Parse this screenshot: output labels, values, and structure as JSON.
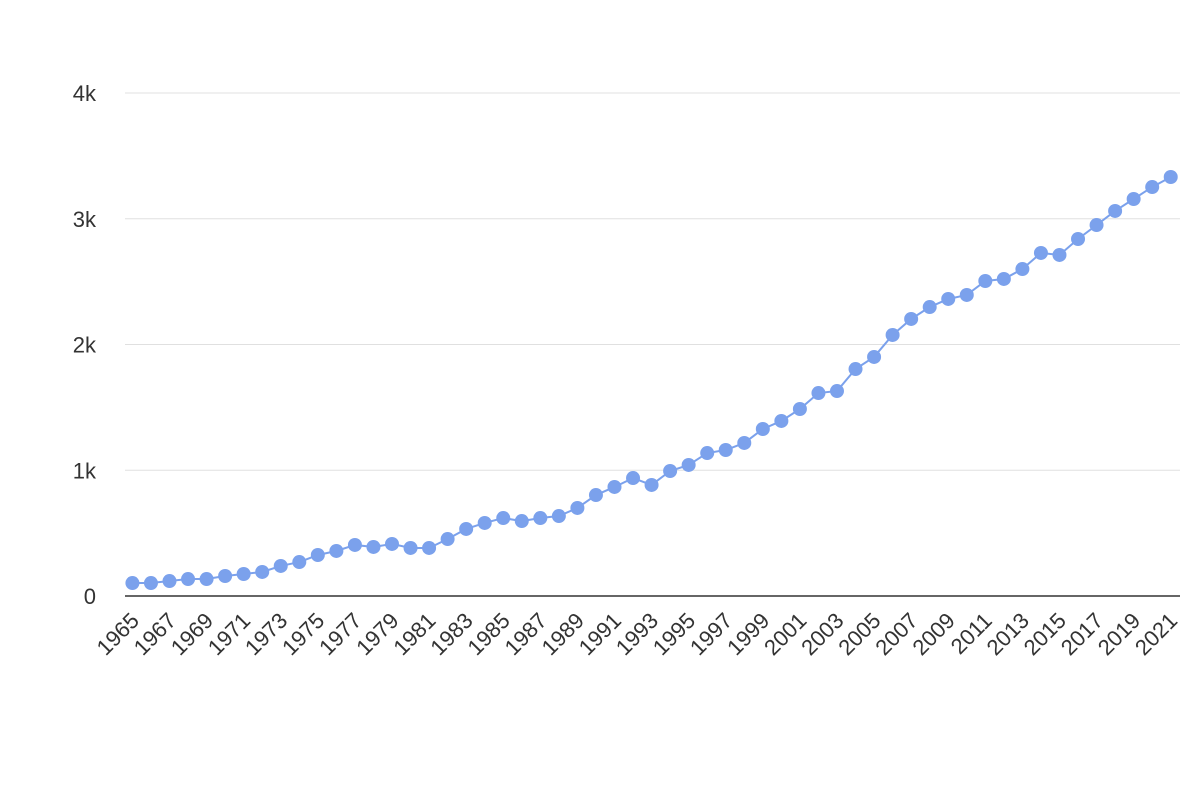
{
  "chart_data": {
    "type": "line",
    "x": [
      1965,
      1966,
      1967,
      1968,
      1969,
      1970,
      1971,
      1972,
      1973,
      1974,
      1975,
      1976,
      1977,
      1978,
      1979,
      1980,
      1981,
      1982,
      1983,
      1984,
      1985,
      1986,
      1987,
      1988,
      1989,
      1990,
      1991,
      1992,
      1993,
      1994,
      1995,
      1996,
      1997,
      1998,
      1999,
      2000,
      2001,
      2002,
      2003,
      2004,
      2005,
      2006,
      2007,
      2008,
      2009,
      2010,
      2011,
      2012,
      2013,
      2014,
      2015,
      2016,
      2017,
      2018,
      2019,
      2020,
      2021
    ],
    "series": [
      {
        "color": "#7ba1ec",
        "values": [
          103,
          103,
          119,
          135,
          135,
          159,
          175,
          191,
          239,
          270,
          326,
          358,
          406,
          390,
          414,
          382,
          382,
          453,
          533,
          581,
          620,
          596,
          620,
          636,
          700,
          803,
          867,
          938,
          883,
          994,
          1042,
          1137,
          1161,
          1217,
          1328,
          1392,
          1487,
          1614,
          1630,
          1805,
          1901,
          2076,
          2203,
          2298,
          2362,
          2394,
          2505,
          2521,
          2600,
          2728,
          2712,
          2839,
          2950,
          3062,
          3157,
          3252,
          3332
        ]
      }
    ],
    "xlim": [
      1964.6,
      2021.5
    ],
    "xticks": [
      1965,
      1967,
      1969,
      1971,
      1973,
      1975,
      1977,
      1979,
      1981,
      1983,
      1985,
      1987,
      1989,
      1991,
      1993,
      1995,
      1997,
      1999,
      2001,
      2003,
      2005,
      2007,
      2009,
      2011,
      2013,
      2015,
      2017,
      2019,
      2021
    ],
    "ylim": [
      0,
      4000
    ],
    "yticks": [
      0,
      {
        "value": 1000,
        "label": "1k"
      },
      {
        "value": 2000,
        "label": "2k"
      },
      {
        "value": 3000,
        "label": "3k"
      },
      {
        "value": 4000,
        "label": "4k"
      }
    ],
    "grid": true
  }
}
